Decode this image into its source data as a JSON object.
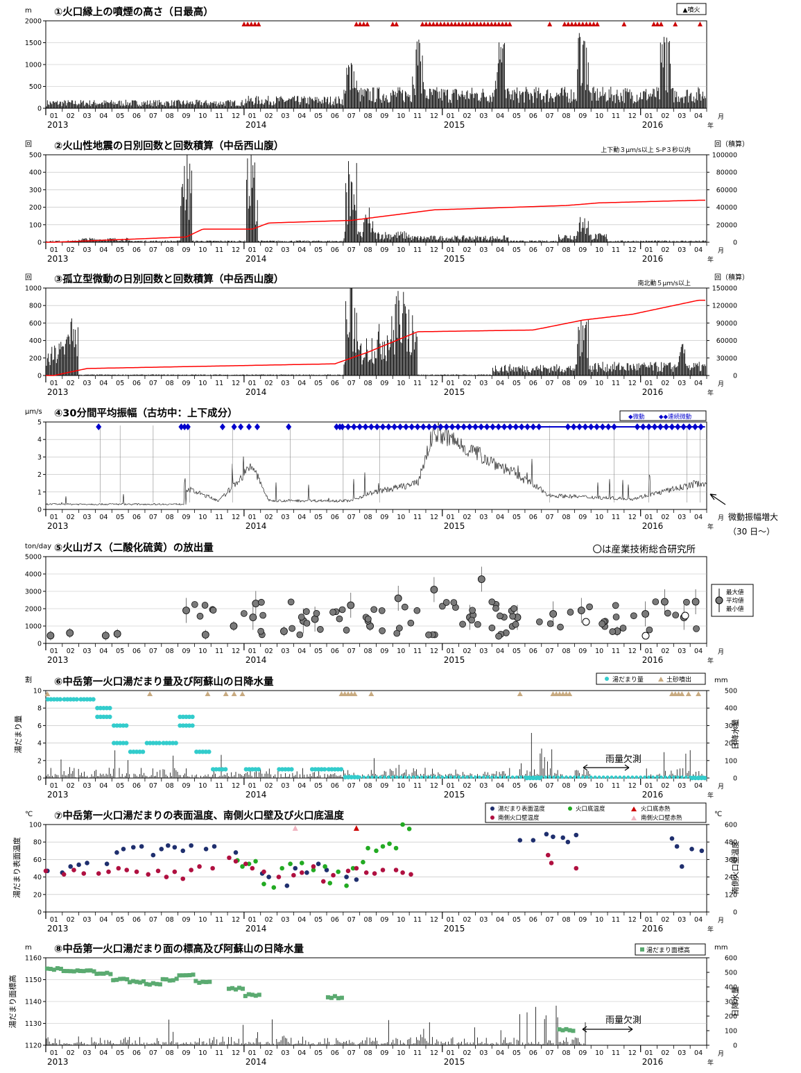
{
  "months": [
    "01",
    "02",
    "03",
    "04",
    "05",
    "06",
    "07",
    "08",
    "09",
    "10",
    "11",
    "12",
    "01",
    "02",
    "03",
    "04",
    "05",
    "06",
    "07",
    "08",
    "09",
    "10",
    "11",
    "12",
    "01",
    "02",
    "03",
    "04",
    "05",
    "06",
    "07",
    "08",
    "09",
    "10",
    "11",
    "12",
    "01",
    "02",
    "03",
    "04"
  ],
  "years": [
    "2013",
    "2014",
    "2015",
    "2016"
  ],
  "axis_month_unit": "月",
  "axis_year_unit": "年",
  "colors": {
    "eruption": "#cc0000",
    "cumulative": "#ff0000",
    "tremor": "#0000cc",
    "pool_level": "#33cccc",
    "ash": "#c8aa80",
    "surface_temp": "#1f2f6e",
    "floor_temp": "#22aa22",
    "wall_temp": "#b01040",
    "elevation": "#5aaa70"
  },
  "panels": [
    {
      "key": "p1",
      "title": "①火口縁上の噴煙の高さ（日最高）",
      "left_unit": "m",
      "right_unit": "",
      "subnote": "",
      "legend": [
        "▲噴火"
      ],
      "chart_data": {
        "type": "bar",
        "title": "①火口縁上の噴煙の高さ（日最高）",
        "ylabel": "m",
        "ylim": [
          0,
          2000
        ],
        "yticks": [
          0,
          500,
          1000,
          1500,
          2000
        ],
        "series": [
          {
            "name": "噴火",
            "note": "eruption days marked with triangles"
          }
        ],
        "peaks": [
          {
            "x": "2014-07",
            "value": 1200
          },
          {
            "x": "2014-11",
            "value": 1500
          },
          {
            "x": "2015-04",
            "value": 1500
          },
          {
            "x": "2015-09",
            "value": 2000
          },
          {
            "x": "2016-02",
            "value": 1600
          }
        ]
      }
    },
    {
      "key": "p2",
      "title": "②火山性地震の日別回数と回数積算（中岳西山腹）",
      "left_unit": "回",
      "right_unit": "回（積算）",
      "subnote": "上下動３μｍ/s以上 S-P３秒以内",
      "legend": [],
      "chart_data": {
        "type": "bar",
        "title": "②火山性地震の日別回数と回数積算（中岳西山腹）",
        "ylabel": "回",
        "ylim": [
          0,
          500
        ],
        "yticks": [
          0,
          100,
          200,
          300,
          400,
          500
        ],
        "y2label": "回（積算）",
        "y2lim": [
          0,
          100000
        ],
        "y2ticks": [
          0,
          20000,
          40000,
          60000,
          80000,
          100000
        ],
        "peaks": [
          {
            "x": "2013-09",
            "value": 500
          },
          {
            "x": "2014-01",
            "value": 500
          },
          {
            "x": "2014-07",
            "value": 500
          },
          {
            "x": "2014-08",
            "value": 160
          },
          {
            "x": "2015-09",
            "value": 180
          }
        ],
        "cumulative": [
          {
            "x": "2013-01",
            "value": 0
          },
          {
            "x": "2013-09",
            "value": 6000
          },
          {
            "x": "2013-10",
            "value": 15000
          },
          {
            "x": "2014-01",
            "value": 15000
          },
          {
            "x": "2014-02",
            "value": 22000
          },
          {
            "x": "2014-07",
            "value": 25000
          },
          {
            "x": "2014-12",
            "value": 37000
          },
          {
            "x": "2015-08",
            "value": 42000
          },
          {
            "x": "2015-10",
            "value": 45000
          },
          {
            "x": "2016-04",
            "value": 48000
          }
        ]
      }
    },
    {
      "key": "p3",
      "title": "③孤立型微動の日別回数と回数積算（中岳西山腹）",
      "left_unit": "回",
      "right_unit": "回（積算）",
      "subnote": "南北動５μｍ/s以上",
      "legend": [],
      "chart_data": {
        "type": "bar",
        "title": "③孤立型微動の日別回数と回数積算（中岳西山腹）",
        "ylabel": "回",
        "ylim": [
          0,
          1000
        ],
        "yticks": [
          0,
          200,
          400,
          600,
          800,
          1000
        ],
        "y2label": "回（積算）",
        "y2lim": [
          0,
          150000
        ],
        "y2ticks": [
          0,
          30000,
          60000,
          90000,
          120000,
          150000
        ],
        "peaks": [
          {
            "x": "2013-02",
            "value": 560
          },
          {
            "x": "2014-07",
            "value": 1000
          },
          {
            "x": "2014-10",
            "value": 1000
          },
          {
            "x": "2015-09",
            "value": 840
          },
          {
            "x": "2016-03",
            "value": 300
          }
        ],
        "cumulative": [
          {
            "x": "2013-01",
            "value": 0
          },
          {
            "x": "2013-03",
            "value": 12000
          },
          {
            "x": "2014-06",
            "value": 20000
          },
          {
            "x": "2014-07",
            "value": 30000
          },
          {
            "x": "2014-08",
            "value": 40000
          },
          {
            "x": "2014-11",
            "value": 75000
          },
          {
            "x": "2015-06",
            "value": 78000
          },
          {
            "x": "2015-09",
            "value": 95000
          },
          {
            "x": "2015-12",
            "value": 105000
          },
          {
            "x": "2016-04",
            "value": 129000
          }
        ]
      }
    },
    {
      "key": "p4",
      "title": "④30分間平均振幅（古坊中：上下成分）",
      "left_unit": "μm/s",
      "right_unit": "",
      "subnote": "",
      "legend": [
        "◆微動",
        "◆◆連続微動"
      ],
      "annotation": "微動振幅増大",
      "annotation2": "（30 日～）",
      "chart_data": {
        "type": "line",
        "title": "④30分間平均振幅（古坊中：上下成分）",
        "ylabel": "μm/s",
        "ylim": [
          0,
          5
        ],
        "yticks": [
          0,
          1,
          2,
          3,
          4,
          5
        ],
        "baseline": [
          {
            "x": "2013-01",
            "value": 0.3
          },
          {
            "x": "2013-09",
            "value": 0.3
          },
          {
            "x": "2013-09",
            "value": 1.2
          },
          {
            "x": "2013-11",
            "value": 0.5
          },
          {
            "x": "2014-01",
            "value": 2.5
          },
          {
            "x": "2014-02",
            "value": 0.5
          },
          {
            "x": "2014-07",
            "value": 0.5
          },
          {
            "x": "2014-08",
            "value": 0.9
          },
          {
            "x": "2014-11",
            "value": 1.5
          },
          {
            "x": "2014-12",
            "value": 4.5
          },
          {
            "x": "2015-03",
            "value": 3.0
          },
          {
            "x": "2015-05",
            "value": 2.0
          },
          {
            "x": "2015-07",
            "value": 0.8
          },
          {
            "x": "2015-12",
            "value": 0.6
          },
          {
            "x": "2016-04",
            "value": 1.5
          }
        ]
      }
    },
    {
      "key": "p5",
      "title": "⑤火山ガス（二酸化硫黄）の放出量",
      "left_unit": "ton/day",
      "right_unit": "",
      "subnote": "〇は産業技術総合研究所",
      "legend": [
        "最大値",
        "平均値",
        "最小値"
      ],
      "chart_data": {
        "type": "scatter",
        "title": "⑤火山ガス（二酸化硫黄）の放出量",
        "ylabel": "ton/day",
        "ylim": [
          0,
          5000
        ],
        "yticks": [
          0,
          1000,
          2000,
          3000,
          4000,
          5000
        ],
        "points": [
          {
            "x": "2013-01",
            "value": 450
          },
          {
            "x": "2013-02",
            "value": 600
          },
          {
            "x": "2013-04",
            "value": 450
          },
          {
            "x": "2013-05",
            "value": 550
          },
          {
            "x": "2013-09",
            "value": 1900
          },
          {
            "x": "2013-10",
            "value": 500
          },
          {
            "x": "2013-12",
            "value": 1000
          },
          {
            "x": "2014-01",
            "value": 1500
          },
          {
            "x": "2014-01",
            "value": 2300
          },
          {
            "x": "2014-03",
            "value": 700
          },
          {
            "x": "2014-04",
            "value": 1300
          },
          {
            "x": "2014-05",
            "value": 1400
          },
          {
            "x": "2014-07",
            "value": 2200
          },
          {
            "x": "2014-08",
            "value": 1000
          },
          {
            "x": "2014-10",
            "value": 2600
          },
          {
            "x": "2014-12",
            "value": 3100
          },
          {
            "x": "2015-02",
            "value": 1500
          },
          {
            "x": "2015-03",
            "value": 3700
          },
          {
            "x": "2015-05",
            "value": 1500
          },
          {
            "x": "2015-07",
            "value": 1700
          },
          {
            "x": "2015-09",
            "value": 1900
          },
          {
            "x": "2015-11",
            "value": 700
          },
          {
            "x": "2016-01",
            "value": 1700
          },
          {
            "x": "2016-02",
            "value": 2400
          },
          {
            "x": "2016-03",
            "value": 1500
          },
          {
            "x": "2016-04",
            "value": 2400
          }
        ]
      }
    },
    {
      "key": "p6",
      "title": "⑥中岳第一火口湯だまり量及び阿蘇山の日降水量",
      "left_unit": "割",
      "right_unit": "mm",
      "left_label": "湯だまり量",
      "right_label": "日降水量",
      "subnote": "",
      "legend": [
        "湯だまり量",
        "土砂噴出"
      ],
      "annotation": "雨量欠測",
      "chart_data": {
        "type": "scatter",
        "title": "⑥中岳第一火口湯だまり量及び阿蘇山の日降水量",
        "ylabel": "割",
        "ylim": [
          0,
          10
        ],
        "yticks": [
          0,
          2,
          4,
          6,
          8,
          10
        ],
        "y2label": "mm",
        "y2lim": [
          0,
          500
        ],
        "y2ticks": [
          0,
          100,
          200,
          300,
          400,
          500
        ],
        "series": [
          {
            "name": "湯だまり量",
            "points": [
              {
                "x": "2013-01",
                "value": 9
              },
              {
                "x": "2013-02",
                "value": 9
              },
              {
                "x": "2013-03",
                "value": 9
              },
              {
                "x": "2013-04",
                "value": 8
              },
              {
                "x": "2013-04",
                "value": 7
              },
              {
                "x": "2013-05",
                "value": 6
              },
              {
                "x": "2013-05",
                "value": 4
              },
              {
                "x": "2013-06",
                "value": 3
              },
              {
                "x": "2013-07",
                "value": 4
              },
              {
                "x": "2013-08",
                "value": 4
              },
              {
                "x": "2013-09",
                "value": 7
              },
              {
                "x": "2013-09",
                "value": 6
              },
              {
                "x": "2013-10",
                "value": 3
              },
              {
                "x": "2013-11",
                "value": 1
              },
              {
                "x": "2014-01",
                "value": 1
              },
              {
                "x": "2014-03",
                "value": 1
              },
              {
                "x": "2014-05",
                "value": 1
              },
              {
                "x": "2014-06",
                "value": 1
              },
              {
                "x": "2014-07",
                "value": 0.1
              },
              {
                "x": "2015-06",
                "value": 0
              },
              {
                "x": "2016-04",
                "value": 0
              }
            ]
          }
        ]
      }
    },
    {
      "key": "p7",
      "title": "⑦中岳第一火口湯だまりの表面温度、南側火口壁及び火口底温度",
      "left_unit": "℃",
      "right_unit": "℃",
      "left_label": "湯だまり表面温度",
      "right_label": "南側火口壁温度",
      "subnote": "",
      "legend": [
        "湯だまり表面温度",
        "火口底温度",
        "火口底赤熱",
        "南側火口壁温度",
        "南側火口壁赤熱"
      ],
      "chart_data": {
        "type": "scatter",
        "title": "⑦中岳第一火口湯だまりの表面温度、南側火口壁及び火口底温度",
        "ylabel": "℃",
        "ylim": [
          0,
          100
        ],
        "yticks": [
          0,
          20,
          40,
          60,
          80,
          100
        ],
        "y2label": "℃",
        "y2lim": [
          0,
          600
        ],
        "y2ticks": [
          0,
          120,
          240,
          360,
          480,
          600
        ],
        "series": [
          {
            "name": "湯だまり表面温度",
            "range": [
              25,
              90
            ]
          },
          {
            "name": "火口底温度",
            "range": [
              28,
              100
            ]
          },
          {
            "name": "南側火口壁温度",
            "range": [
              240,
              390
            ]
          }
        ]
      }
    },
    {
      "key": "p8",
      "title": "⑧中岳第一火口湯だまり面の標高及び阿蘇山の日降水量",
      "left_unit": "m",
      "right_unit": "mm",
      "left_label": "湯だまり面標高",
      "right_label": "日降水量",
      "subnote": "",
      "legend": [
        "湯だまり面標高"
      ],
      "annotation": "雨量欠測",
      "chart_data": {
        "type": "scatter",
        "title": "⑧中岳第一火口湯だまり面の標高及び阿蘇山の日降水量",
        "ylabel": "m",
        "ylim": [
          1120,
          1160
        ],
        "yticks": [
          1120,
          1130,
          1140,
          1150,
          1160
        ],
        "y2label": "mm",
        "y2lim": [
          0,
          600
        ],
        "y2ticks": [
          0,
          100,
          200,
          300,
          400,
          500,
          600
        ],
        "series": [
          {
            "name": "湯だまり面標高",
            "points": [
              {
                "x": "2013-01",
                "value": 1155
              },
              {
                "x": "2013-02",
                "value": 1154
              },
              {
                "x": "2013-03",
                "value": 1154
              },
              {
                "x": "2013-04",
                "value": 1153
              },
              {
                "x": "2013-05",
                "value": 1150
              },
              {
                "x": "2013-06",
                "value": 1149
              },
              {
                "x": "2013-07",
                "value": 1148
              },
              {
                "x": "2013-08",
                "value": 1150
              },
              {
                "x": "2013-09",
                "value": 1152
              },
              {
                "x": "2013-10",
                "value": 1149
              },
              {
                "x": "2013-12",
                "value": 1146
              },
              {
                "x": "2014-01",
                "value": 1143
              },
              {
                "x": "2014-06",
                "value": 1142
              },
              {
                "x": "2015-08",
                "value": 1127
              }
            ]
          }
        ]
      }
    }
  ]
}
